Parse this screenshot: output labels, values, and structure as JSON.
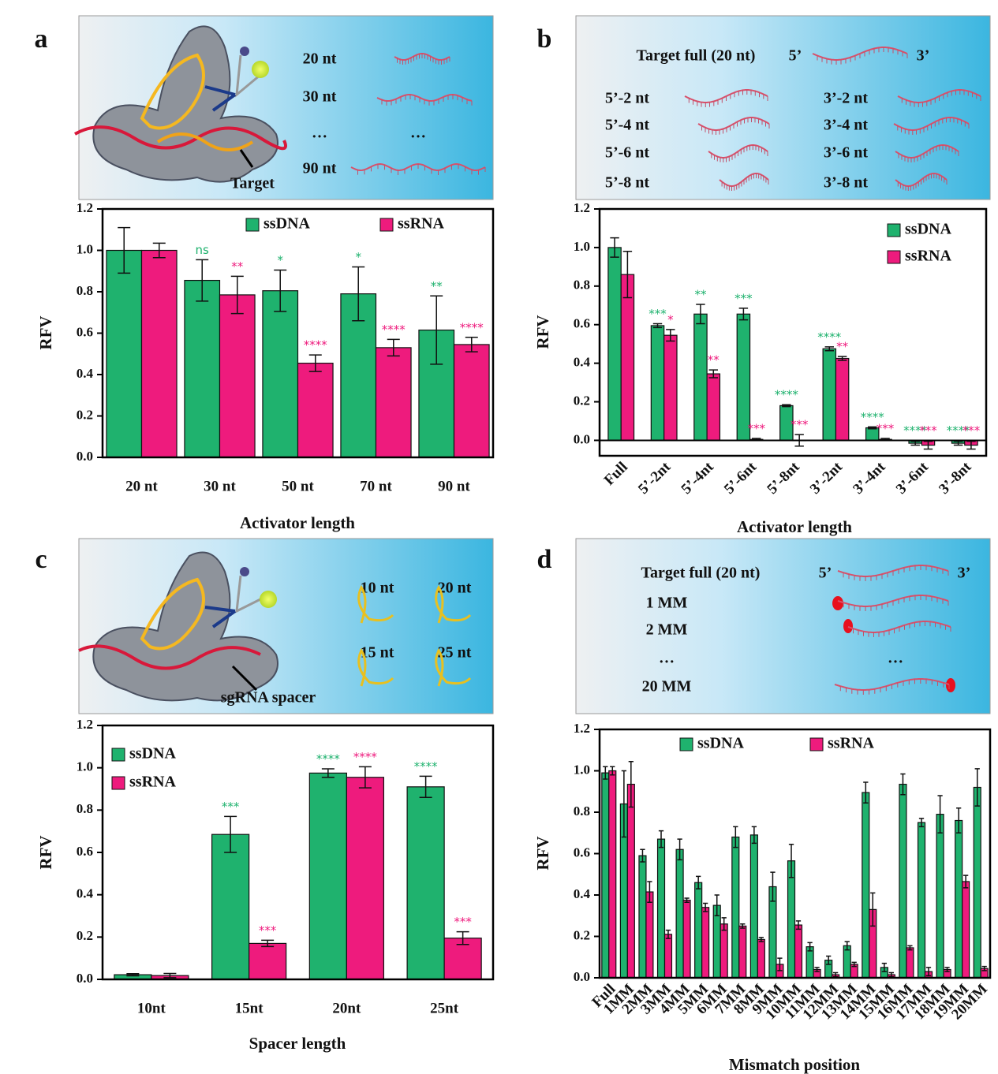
{
  "panel_labels": [
    "a",
    "b",
    "c",
    "d"
  ],
  "schematics": {
    "a": {
      "lengths": [
        "20 nt",
        "30 nt",
        "…",
        "…",
        "90 nt"
      ],
      "target": "Target"
    },
    "b": {
      "full": "Target full (20 nt)",
      "five": "5’",
      "three": "3’",
      "left": [
        "5’-2 nt",
        "5’-4 nt",
        "5’-6 nt",
        "5’-8 nt"
      ],
      "right": [
        "3’-2 nt",
        "3’-4 nt",
        "3’-6 nt",
        "3’-8 nt"
      ]
    },
    "c": {
      "spacers": [
        "10 nt",
        "20 nt",
        "15 nt",
        "25 nt"
      ],
      "label": "sgRNA spacer"
    },
    "d": {
      "full": "Target full (20 nt)",
      "five": "5’",
      "three": "3’",
      "rows": [
        "1 MM",
        "2 MM",
        "…",
        "20 MM"
      ],
      "dots": "…"
    }
  },
  "chart_data": [
    {
      "type": "bar",
      "xlabel": "Activator length",
      "ylabel": "RFV",
      "legend": "top",
      "categories": [
        "20 nt",
        "30 nt",
        "50 nt",
        "70 nt",
        "90 nt"
      ],
      "ylim": [
        0,
        1.2
      ],
      "yticks": [
        {
          "value": 0,
          "label": "0.0"
        },
        {
          "value": 0.2,
          "label": "0.2"
        },
        {
          "value": 0.4,
          "label": "0.4"
        },
        {
          "value": 0.6,
          "label": "0.6"
        },
        {
          "value": 0.8,
          "label": "0.8"
        },
        {
          "value": 1,
          "label": "1.0"
        },
        {
          "value": 1.2,
          "label": "1.2"
        }
      ],
      "series": [
        {
          "name": "ssDNA",
          "color": "#1fb26e",
          "values": [
            1.0,
            0.855,
            0.805,
            0.79,
            0.615
          ],
          "errors": [
            0.11,
            0.1,
            0.1,
            0.13,
            0.165
          ],
          "annotations": [
            null,
            "ns",
            "*",
            "*",
            "**"
          ]
        },
        {
          "name": "ssRNA",
          "color": "#ee1b7d",
          "values": [
            1.0,
            0.785,
            0.455,
            0.53,
            0.545
          ],
          "errors": [
            0.035,
            0.09,
            0.04,
            0.04,
            0.035
          ],
          "annotations": [
            null,
            "**",
            "****",
            "****",
            "****"
          ]
        }
      ]
    },
    {
      "type": "bar",
      "xlabel": "Activator length",
      "ylabel": "RFV",
      "legend": "upper right",
      "categories": [
        "Full",
        "5’-2nt",
        "5’-4nt",
        "5’-6nt",
        "5’-8nt",
        "3’-2nt",
        "3’-4nt",
        "3’-6nt",
        "3’-8nt"
      ],
      "ylim": [
        -0.08,
        1.2
      ],
      "yticks": [
        {
          "value": 0,
          "label": "0.0"
        },
        {
          "value": 0.2,
          "label": "0.2"
        },
        {
          "value": 0.4,
          "label": "0.4"
        },
        {
          "value": 0.6,
          "label": "0.6"
        },
        {
          "value": 0.8,
          "label": "0.8"
        },
        {
          "value": 1,
          "label": "1.0"
        },
        {
          "value": 1.2,
          "label": "1.2"
        }
      ],
      "series": [
        {
          "name": "ssDNA",
          "color": "#1fb26e",
          "values": [
            1.0,
            0.595,
            0.655,
            0.655,
            0.18,
            0.475,
            0.065,
            -0.015,
            -0.015
          ],
          "errors": [
            0.05,
            0.01,
            0.05,
            0.03,
            0.005,
            0.01,
            0.005,
            0.01,
            0.01
          ],
          "annotations": [
            null,
            "***",
            "**",
            "***",
            "****",
            "****",
            "****",
            "****",
            "****"
          ]
        },
        {
          "name": "ssRNA",
          "color": "#ee1b7d",
          "values": [
            0.86,
            0.545,
            0.345,
            0.005,
            0.0,
            0.425,
            0.005,
            -0.025,
            -0.025
          ],
          "errors": [
            0.12,
            0.03,
            0.02,
            0.005,
            0.03,
            0.01,
            0.005,
            0.02,
            0.02
          ],
          "annotations": [
            null,
            "*",
            "**",
            "***",
            "***",
            "**",
            "***",
            "***",
            "***"
          ]
        }
      ]
    },
    {
      "type": "bar",
      "xlabel": "Spacer length",
      "ylabel": "RFV",
      "legend": "upper left",
      "categories": [
        "10nt",
        "15nt",
        "20nt",
        "25nt"
      ],
      "ylim": [
        0,
        1.2
      ],
      "yticks": [
        {
          "value": 0,
          "label": "0.0"
        },
        {
          "value": 0.2,
          "label": "0.2"
        },
        {
          "value": 0.4,
          "label": "0.4"
        },
        {
          "value": 0.6,
          "label": "0.6"
        },
        {
          "value": 0.8,
          "label": "0.8"
        },
        {
          "value": 1,
          "label": "1.0"
        },
        {
          "value": 1.2,
          "label": "1.2"
        }
      ],
      "series": [
        {
          "name": "ssDNA",
          "color": "#1fb26e",
          "values": [
            0.022,
            0.685,
            0.975,
            0.91
          ],
          "errors": [
            0.005,
            0.085,
            0.02,
            0.05
          ],
          "annotations": [
            null,
            "***",
            "****",
            "****"
          ]
        },
        {
          "name": "ssRNA",
          "color": "#ee1b7d",
          "values": [
            0.018,
            0.17,
            0.955,
            0.195
          ],
          "errors": [
            0.01,
            0.015,
            0.05,
            0.03
          ],
          "annotations": [
            null,
            "***",
            "****",
            "***"
          ]
        }
      ]
    },
    {
      "type": "bar",
      "xlabel": "Mismatch position",
      "ylabel": "RFV",
      "legend": "top",
      "categories": [
        "Full",
        "1MM",
        "2MM",
        "3MM",
        "4MM",
        "5MM",
        "6MM",
        "7MM",
        "8MM",
        "9MM",
        "10MM",
        "11MM",
        "12MM",
        "13MM",
        "14MM",
        "15MM",
        "16MM",
        "17MM",
        "18MM",
        "19MM",
        "20MM"
      ],
      "ylim": [
        0,
        1.2
      ],
      "yticks": [
        {
          "value": 0,
          "label": "0.0"
        },
        {
          "value": 0.2,
          "label": "0.2"
        },
        {
          "value": 0.4,
          "label": "0.4"
        },
        {
          "value": 0.6,
          "label": "0.6"
        },
        {
          "value": 0.8,
          "label": "0.8"
        },
        {
          "value": 1,
          "label": "1.0"
        },
        {
          "value": 1.2,
          "label": "1.2"
        }
      ],
      "series": [
        {
          "name": "ssDNA",
          "color": "#1fb26e",
          "values": [
            0.99,
            0.84,
            0.59,
            0.67,
            0.62,
            0.46,
            0.35,
            0.68,
            0.69,
            0.44,
            0.565,
            0.15,
            0.085,
            0.155,
            0.895,
            0.05,
            0.935,
            0.75,
            0.79,
            0.76,
            0.92
          ],
          "errors": [
            0.03,
            0.16,
            0.03,
            0.04,
            0.05,
            0.03,
            0.05,
            0.05,
            0.04,
            0.07,
            0.08,
            0.02,
            0.02,
            0.02,
            0.05,
            0.02,
            0.05,
            0.02,
            0.09,
            0.06,
            0.09
          ]
        },
        {
          "name": "ssRNA",
          "color": "#ee1b7d",
          "values": [
            1.0,
            0.935,
            0.415,
            0.21,
            0.375,
            0.34,
            0.26,
            0.25,
            0.185,
            0.065,
            0.255,
            0.04,
            0.015,
            0.065,
            0.33,
            0.015,
            0.145,
            0.03,
            0.04,
            0.465,
            0.045
          ],
          "errors": [
            0.02,
            0.11,
            0.05,
            0.02,
            0.01,
            0.02,
            0.03,
            0.01,
            0.01,
            0.03,
            0.02,
            0.01,
            0.01,
            0.01,
            0.08,
            0.01,
            0.01,
            0.02,
            0.01,
            0.03,
            0.01
          ]
        }
      ]
    }
  ]
}
